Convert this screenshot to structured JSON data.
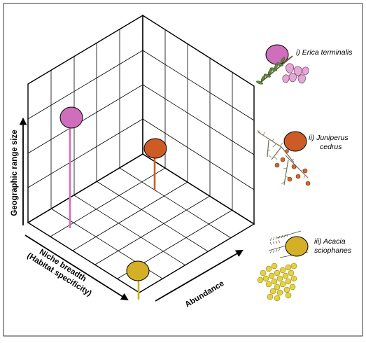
{
  "axes": {
    "y_label": "Geographic range size",
    "x_label_line1": "Niche breadth",
    "x_label_line2": "(Habitat specificity)",
    "z_label": "Abundance"
  },
  "species": [
    {
      "label_line1": "i) Erica terminalis",
      "label_line2": "",
      "color": "#cf6fbc"
    },
    {
      "label_line1": "ii) Juniperus",
      "label_line2": "cedrus",
      "color": "#cd5b26"
    },
    {
      "label_line1": "iii) Acacia",
      "label_line2": "sciophanes",
      "color": "#d4b028"
    }
  ],
  "colors": {
    "grid": "#000000",
    "leaf_green": "#5e8a3c",
    "juniper_leaf": "#8a9a7a"
  }
}
